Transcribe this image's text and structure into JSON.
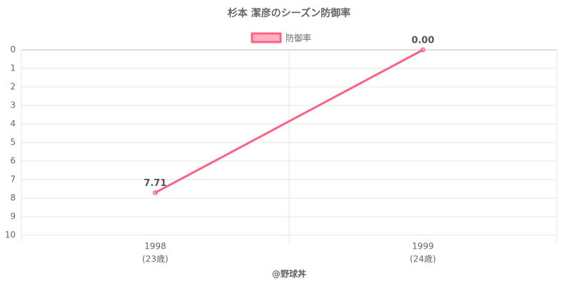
{
  "chart_data": {
    "type": "line",
    "title": "杉本 潔彦のシーズン防御率",
    "categories": [
      "1998",
      "1999"
    ],
    "category_sublabels": [
      "(23歳)",
      "(24歳)"
    ],
    "series": [
      {
        "name": "防御率",
        "color": "#ff6384",
        "fill": "rgba(255,99,132,0.5)",
        "values": [
          7.71,
          0
        ],
        "value_labels": [
          "7.71",
          "0.00"
        ]
      }
    ],
    "ylim": [
      0,
      10
    ],
    "yticks": [
      0,
      1,
      2,
      3,
      4,
      5,
      6,
      7,
      8,
      9,
      10
    ],
    "y_reversed": true,
    "grid": true,
    "xlabel": "@野球丼"
  }
}
